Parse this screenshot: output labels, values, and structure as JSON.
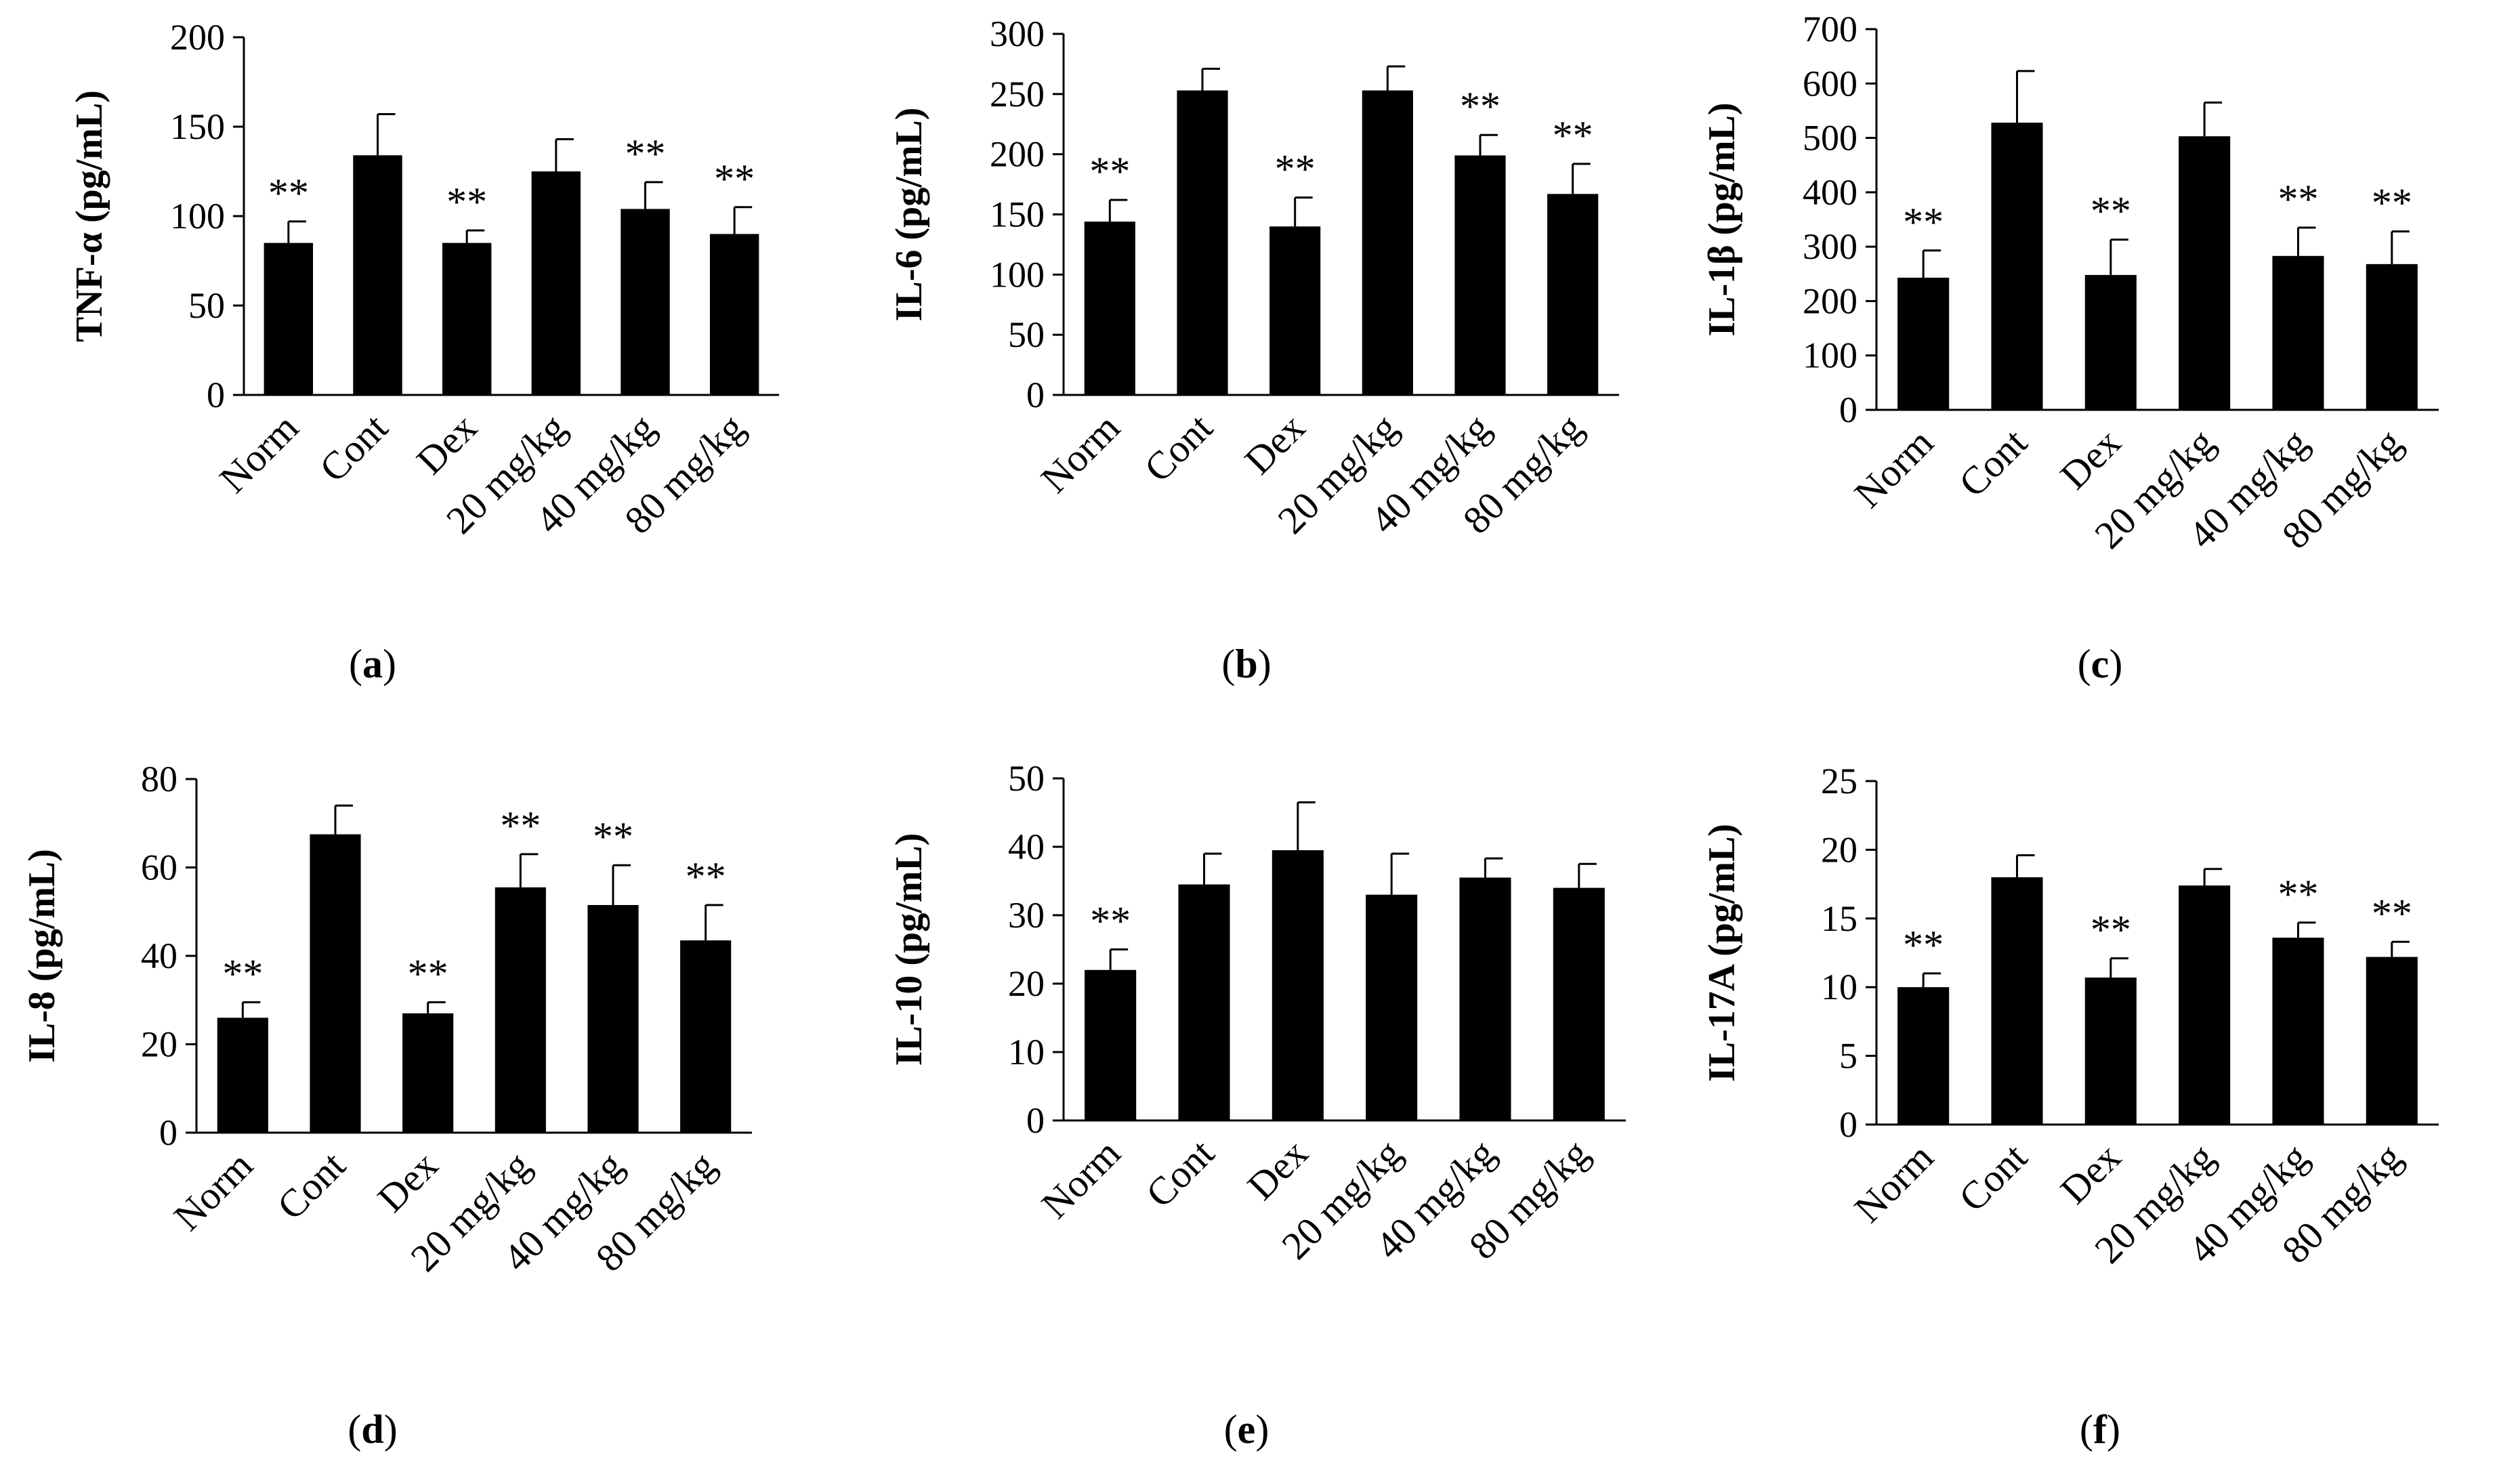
{
  "chart_data": [
    {
      "panel": "a",
      "type": "bar",
      "ylabel": "TNF-α (pg/mL)",
      "ylim": [
        0,
        200
      ],
      "yticks": [
        0,
        50,
        100,
        150,
        200
      ],
      "categories": [
        "Norm",
        "Cont",
        "Dex",
        "20 mg/kg",
        "40 mg/kg",
        "80 mg/kg"
      ],
      "values": [
        85,
        134,
        85,
        125,
        104,
        90
      ],
      "errors": [
        12,
        23,
        7,
        18,
        15,
        15
      ],
      "significance": [
        "**",
        "",
        "**",
        "",
        "**",
        "**"
      ]
    },
    {
      "panel": "b",
      "type": "bar",
      "ylabel": "IL-6 (pg/mL)",
      "ylim": [
        0,
        300
      ],
      "yticks": [
        0,
        50,
        100,
        150,
        200,
        250,
        300
      ],
      "categories": [
        "Norm",
        "Cont",
        "Dex",
        "20 mg/kg",
        "40 mg/kg",
        "80 mg/kg"
      ],
      "values": [
        144,
        253,
        140,
        253,
        199,
        167
      ],
      "errors": [
        18,
        18,
        24,
        20,
        17,
        25
      ],
      "significance": [
        "**",
        "",
        "**",
        "",
        "**",
        "**"
      ]
    },
    {
      "panel": "c",
      "type": "bar",
      "ylabel": "IL-1β (pg/mL)",
      "ylim": [
        0,
        700
      ],
      "yticks": [
        0,
        100,
        200,
        300,
        400,
        500,
        600,
        700
      ],
      "categories": [
        "Norm",
        "Cont",
        "Dex",
        "20 mg/kg",
        "40 mg/kg",
        "80 mg/kg"
      ],
      "values": [
        243,
        528,
        248,
        503,
        283,
        268
      ],
      "errors": [
        50,
        95,
        65,
        62,
        52,
        60
      ],
      "significance": [
        "**",
        "",
        "**",
        "",
        "**",
        "**"
      ]
    },
    {
      "panel": "d",
      "type": "bar",
      "ylabel": "IL-8 (pg/mL)",
      "ylim": [
        0,
        80
      ],
      "yticks": [
        0,
        20,
        40,
        60,
        80
      ],
      "categories": [
        "Norm",
        "Cont",
        "Dex",
        "20 mg/kg",
        "40 mg/kg",
        "80 mg/kg"
      ],
      "values": [
        26,
        67.5,
        27,
        55.5,
        51.5,
        43.5
      ],
      "errors": [
        3.5,
        6.5,
        2.5,
        7.5,
        9,
        8
      ],
      "significance": [
        "**",
        "",
        "**",
        "**",
        "**",
        "**"
      ]
    },
    {
      "panel": "e",
      "type": "bar",
      "ylabel": "IL-10 (pg/mL)",
      "ylim": [
        0,
        50
      ],
      "yticks": [
        0,
        10,
        20,
        30,
        40,
        50
      ],
      "categories": [
        "Norm",
        "Cont",
        "Dex",
        "20 mg/kg",
        "40 mg/kg",
        "80 mg/kg"
      ],
      "values": [
        22,
        34.5,
        39.5,
        33,
        35.5,
        34
      ],
      "errors": [
        3,
        4.5,
        7,
        6,
        2.8,
        3.5
      ],
      "significance": [
        "**",
        "",
        "",
        "",
        "",
        ""
      ]
    },
    {
      "panel": "f",
      "type": "bar",
      "ylabel": "IL-17A (pg/mL)",
      "ylim": [
        0,
        25
      ],
      "yticks": [
        0,
        5,
        10,
        15,
        20,
        25
      ],
      "categories": [
        "Norm",
        "Cont",
        "Dex",
        "20 mg/kg",
        "40 mg/kg",
        "80 mg/kg"
      ],
      "values": [
        10,
        18,
        10.7,
        17.4,
        13.6,
        12.2
      ],
      "errors": [
        1,
        1.6,
        1.4,
        1.2,
        1.1,
        1.1
      ],
      "significance": [
        "**",
        "",
        "**",
        "",
        "**",
        "**"
      ]
    }
  ],
  "colors": {
    "bar": "#000000",
    "axis": "#000000",
    "background": "#ffffff"
  }
}
